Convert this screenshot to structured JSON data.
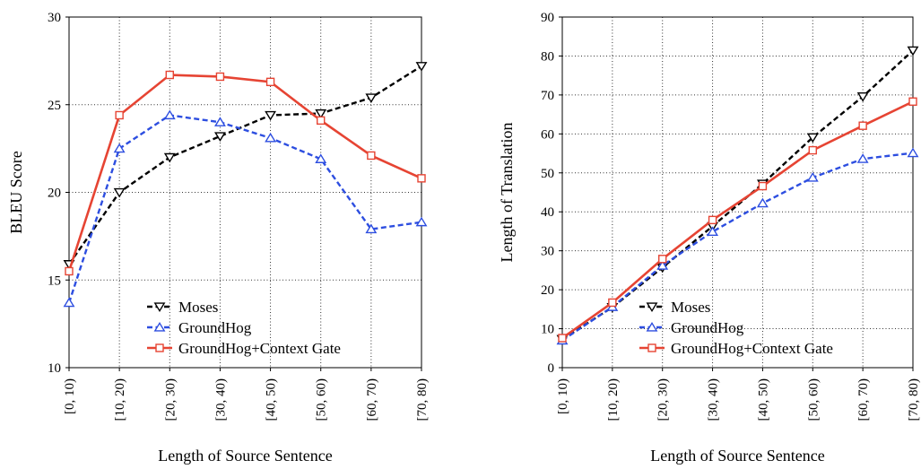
{
  "chart_data": [
    {
      "type": "line",
      "xlabel": "Length of Source Sentence",
      "ylabel": "BLEU Score",
      "categories": [
        "[0, 10)",
        "[10, 20)",
        "[20, 30)",
        "[30, 40)",
        "[40, 50)",
        "[50, 60)",
        "[60, 70)",
        "[70, 80)"
      ],
      "ylim": [
        10,
        30
      ],
      "yticks": [
        "10",
        "15",
        "20",
        "25",
        "30"
      ],
      "grid": true,
      "legend_position": "bottom-center",
      "series": [
        {
          "name": "Moses",
          "values": [
            15.9,
            20.0,
            22.0,
            23.2,
            24.4,
            24.5,
            25.4,
            27.2
          ],
          "color": "#000000",
          "dash": true,
          "marker": "triangle-down"
        },
        {
          "name": "GroundHog",
          "values": [
            13.7,
            22.5,
            24.4,
            24.0,
            23.1,
            21.9,
            17.9,
            18.3
          ],
          "color": "#2d4ee0",
          "dash": true,
          "marker": "triangle-up"
        },
        {
          "name": "GroundHog+Context Gate",
          "values": [
            15.5,
            24.4,
            26.7,
            26.6,
            26.3,
            24.1,
            22.1,
            20.8
          ],
          "color": "#e64433",
          "dash": false,
          "marker": "square"
        }
      ]
    },
    {
      "type": "line",
      "xlabel": "Length of Source Sentence",
      "ylabel": "Length of Translation",
      "categories": [
        "[0, 10)",
        "[10, 20)",
        "[20, 30)",
        "[30, 40)",
        "[40, 50)",
        "[50, 60)",
        "[60, 70)",
        "[70, 80)"
      ],
      "ylim": [
        0,
        90
      ],
      "yticks": [
        "0",
        "10",
        "20",
        "30",
        "40",
        "50",
        "60",
        "70",
        "80",
        "90"
      ],
      "grid": true,
      "legend_position": "bottom-center",
      "series": [
        {
          "name": "Moses",
          "values": [
            7.3,
            15.5,
            25.7,
            36.3,
            47.2,
            59.1,
            69.6,
            81.4
          ],
          "color": "#000000",
          "dash": true,
          "marker": "triangle-down"
        },
        {
          "name": "GroundHog",
          "values": [
            7.0,
            15.6,
            26.2,
            34.9,
            42.2,
            48.8,
            53.6,
            55.1
          ],
          "color": "#2d4ee0",
          "dash": true,
          "marker": "triangle-up"
        },
        {
          "name": "GroundHog+Context Gate",
          "values": [
            7.6,
            16.7,
            27.9,
            37.9,
            46.6,
            55.8,
            62.1,
            68.3
          ],
          "color": "#e64433",
          "dash": false,
          "marker": "square"
        }
      ]
    }
  ]
}
